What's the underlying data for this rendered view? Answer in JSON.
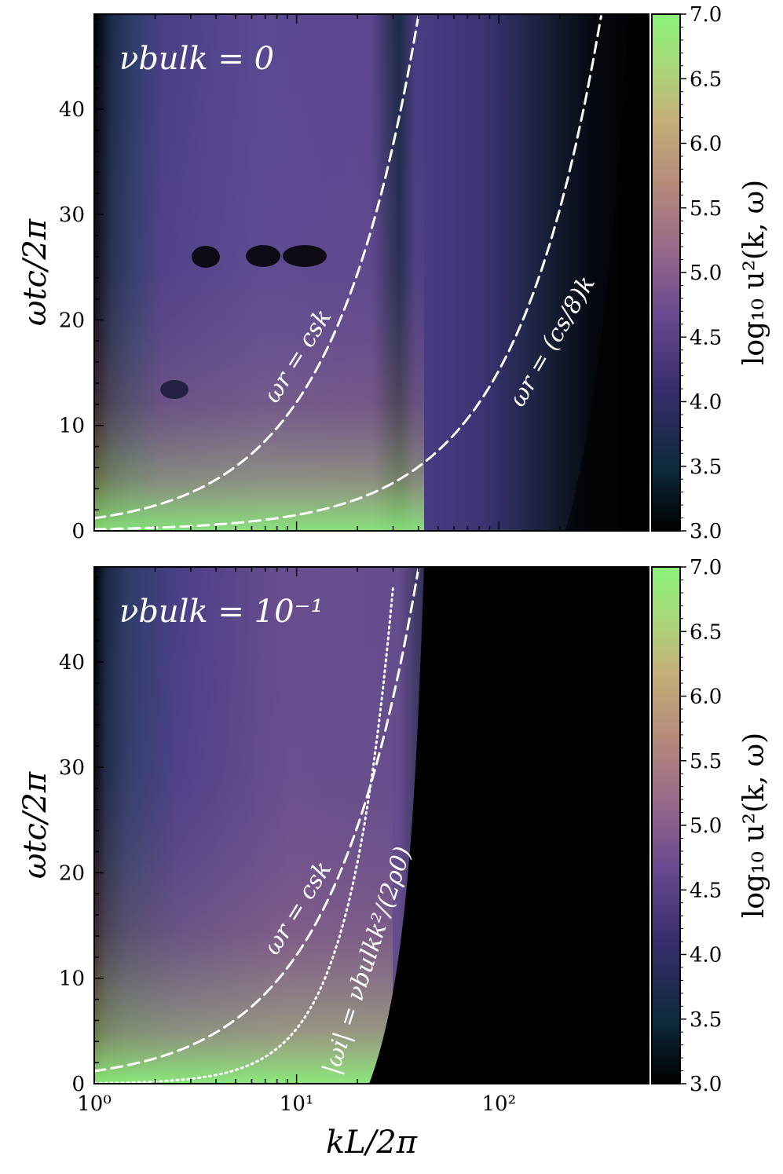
{
  "chart_data": [
    {
      "type": "heatmap",
      "title": "νbulk = 0",
      "xlabel": "kL/2π",
      "ylabel": "ωtc/2π",
      "xscale": "log",
      "xlim": [
        1,
        550
      ],
      "ylim": [
        0,
        49
      ],
      "xticks": [
        {
          "value": 1,
          "label": "10⁰"
        },
        {
          "value": 10,
          "label": "10¹"
        },
        {
          "value": 100,
          "label": "10²"
        }
      ],
      "yticks": [
        0,
        10,
        20,
        30,
        40
      ],
      "colorbar": {
        "label": "log₁₀ u²(k, ω)",
        "range": [
          3.0,
          7.0
        ],
        "ticks": [
          "3.0",
          "3.5",
          "4.0",
          "4.5",
          "5.0",
          "5.5",
          "6.0",
          "6.5",
          "7.0"
        ],
        "colors": [
          "#000000",
          "#0d2a3c",
          "#3a2e6e",
          "#6a4a8f",
          "#9a6a8a",
          "#b68d7a",
          "#c4b078",
          "#a8d87a",
          "#8cf27a"
        ]
      },
      "curves": [
        {
          "label": "ωr = csk",
          "style": "dashed",
          "x": [
            1,
            2,
            5,
            10,
            20,
            40
          ],
          "y": [
            1.2,
            2.4,
            6.1,
            12.2,
            24.4,
            48.8
          ]
        },
        {
          "label": "ωr = (cs/8)k",
          "style": "dashed",
          "x": [
            1,
            10,
            50,
            100,
            200,
            320
          ],
          "y": [
            0.15,
            1.5,
            7.6,
            15.2,
            30.5,
            48.8
          ]
        }
      ]
    },
    {
      "type": "heatmap",
      "title": "νbulk = 10⁻¹",
      "xlabel": "kL/2π",
      "ylabel": "ωtc/2π",
      "xscale": "log",
      "xlim": [
        1,
        550
      ],
      "ylim": [
        0,
        49
      ],
      "xticks": [
        {
          "value": 1,
          "label": "10⁰"
        },
        {
          "value": 10,
          "label": "10¹"
        },
        {
          "value": 100,
          "label": "10²"
        }
      ],
      "yticks": [
        0,
        10,
        20,
        30,
        40
      ],
      "colorbar": {
        "label": "log₁₀ u²(k, ω)",
        "range": [
          3.0,
          7.0
        ],
        "ticks": [
          "3.0",
          "3.5",
          "4.0",
          "4.5",
          "5.0",
          "5.5",
          "6.0",
          "6.5",
          "7.0"
        ],
        "colors": [
          "#000000",
          "#0d2a3c",
          "#3a2e6e",
          "#6a4a8f",
          "#9a6a8a",
          "#b68d7a",
          "#c4b078",
          "#a8d87a",
          "#8cf27a"
        ]
      },
      "curves": [
        {
          "label": "ωr = csk",
          "style": "dashed",
          "x": [
            1,
            2,
            5,
            10,
            20,
            40
          ],
          "y": [
            1.2,
            2.4,
            6.1,
            12.2,
            24.4,
            48.8
          ]
        },
        {
          "label": "|ωi| = νbulkk²/(2ρ0)",
          "style": "dotted",
          "x": [
            1,
            5,
            10,
            15,
            20,
            25,
            30
          ],
          "y": [
            0.05,
            1.3,
            5.2,
            11.8,
            21.0,
            32.8,
            47.2
          ]
        }
      ]
    }
  ]
}
